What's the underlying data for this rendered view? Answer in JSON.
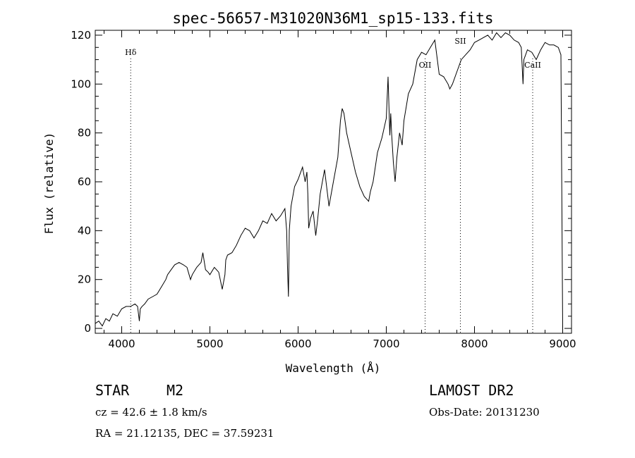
{
  "chart_data": {
    "type": "line",
    "title": "spec-56657-M31020N36M1_sp15-133.fits",
    "xlabel": "Wavelength (Å)",
    "ylabel": "Flux (relative)",
    "xlim": [
      3700,
      9100
    ],
    "ylim": [
      -2,
      122
    ],
    "xticks": [
      4000,
      5000,
      6000,
      7000,
      8000,
      9000
    ],
    "yticks": [
      0,
      20,
      40,
      60,
      80,
      100,
      120
    ],
    "grid": false,
    "line_color": "#000000",
    "lines": [
      {
        "label": "Hδ",
        "x": 4102
      },
      {
        "label": "OII",
        "x": 7440
      },
      {
        "label": "SII",
        "x": 7840
      },
      {
        "label": "CaII",
        "x": 8660
      }
    ],
    "series": [
      {
        "x": [
          3700,
          3740,
          3780,
          3820,
          3860,
          3900,
          3950,
          4000,
          4050,
          4100,
          4150,
          4180,
          4200,
          4210,
          4230,
          4260,
          4300,
          4350,
          4400,
          4450,
          4500,
          4520,
          4560,
          4600,
          4650,
          4700,
          4740,
          4780,
          4800,
          4850,
          4900,
          4920,
          4950,
          4980,
          5000,
          5050,
          5100,
          5140,
          5170,
          5180,
          5200,
          5250,
          5300,
          5350,
          5400,
          5450,
          5500,
          5550,
          5600,
          5650,
          5700,
          5750,
          5800,
          5850,
          5870,
          5880,
          5890,
          5895,
          5900,
          5920,
          5960,
          6000,
          6050,
          6080,
          6100,
          6110,
          6120,
          6140,
          6170,
          6200,
          6220,
          6250,
          6300,
          6350,
          6400,
          6450,
          6480,
          6500,
          6520,
          6550,
          6600,
          6650,
          6700,
          6750,
          6800,
          6820,
          6850,
          6900,
          6950,
          7000,
          7020,
          7040,
          7050,
          7060,
          7080,
          7100,
          7120,
          7150,
          7180,
          7200,
          7250,
          7300,
          7350,
          7400,
          7450,
          7500,
          7550,
          7600,
          7650,
          7700,
          7720,
          7750,
          7800,
          7850,
          7900,
          7950,
          8000,
          8050,
          8100,
          8150,
          8200,
          8250,
          8300,
          8350,
          8400,
          8450,
          8500,
          8530,
          8550,
          8560,
          8600,
          8650,
          8700,
          8750,
          8800,
          8850,
          8900,
          8950,
          8980,
          9000
        ],
        "y": [
          2,
          3,
          1,
          4,
          3,
          6,
          5,
          8,
          9,
          9,
          10,
          9,
          3,
          8,
          9,
          10,
          12,
          13,
          14,
          17,
          20,
          22,
          24,
          26,
          27,
          26,
          25,
          20,
          22,
          25,
          27,
          31,
          24,
          23,
          22,
          25,
          23,
          16,
          22,
          28,
          30,
          31,
          34,
          38,
          41,
          40,
          37,
          40,
          44,
          43,
          47,
          44,
          46,
          49,
          40,
          25,
          13,
          25,
          40,
          50,
          58,
          61,
          66,
          60,
          64,
          55,
          41,
          45,
          48,
          38,
          44,
          55,
          65,
          50,
          60,
          70,
          85,
          90,
          88,
          80,
          72,
          64,
          58,
          54,
          52,
          56,
          60,
          72,
          78,
          86,
          103,
          79,
          88,
          80,
          68,
          60,
          70,
          80,
          75,
          85,
          96,
          100,
          110,
          113,
          112,
          115,
          118,
          104,
          103,
          100,
          98,
          100,
          105,
          110,
          112,
          114,
          117,
          118,
          119,
          120,
          118,
          121,
          119,
          121,
          120,
          118,
          117,
          115,
          100,
          110,
          114,
          113,
          110,
          114,
          117,
          116,
          116,
          115,
          112,
          0
        ]
      }
    ]
  },
  "info": {
    "object_type": "STAR",
    "subclass": "M2",
    "survey": "LAMOST DR2",
    "cz": "cz = 42.6 ± 1.8 km/s",
    "obs_date": "Obs-Date: 20131230",
    "coords": "RA =  21.12135, DEC =  37.59231"
  }
}
